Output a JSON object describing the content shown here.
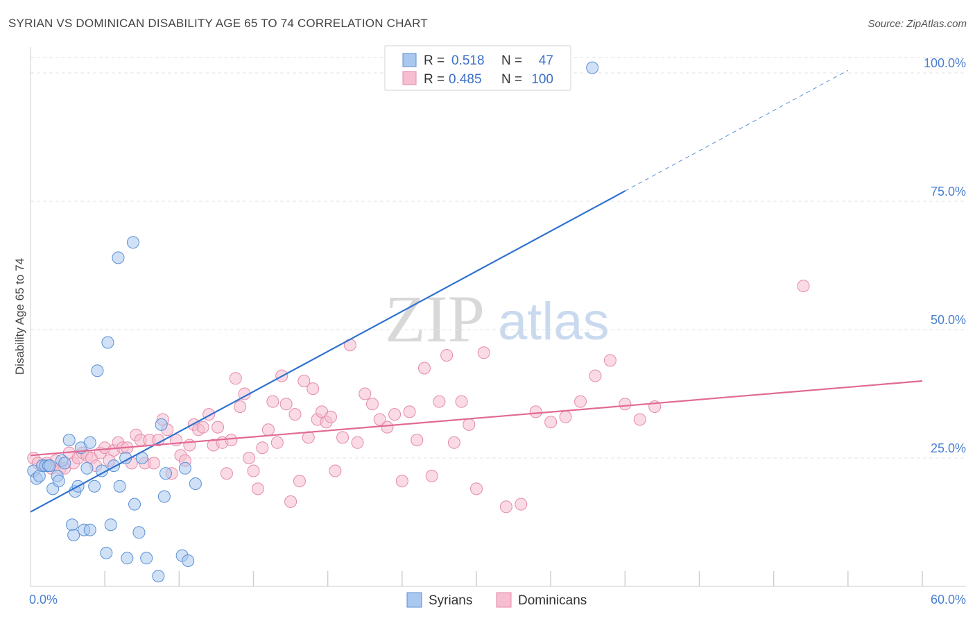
{
  "chart_data": {
    "type": "scatter",
    "title": "SYRIAN VS DOMINICAN DISABILITY AGE 65 TO 74 CORRELATION CHART",
    "source": "Source: ZipAtlas.com",
    "ylabel": "Disability Age 65 to 74",
    "xlim": [
      0,
      60
    ],
    "ylim": [
      0,
      105
    ],
    "x_tick_labels": [
      {
        "value": 0,
        "label": "0.0%"
      },
      {
        "value": 60,
        "label": "60.0%"
      }
    ],
    "y_tick_labels": [
      {
        "value": 25,
        "label": "25.0%"
      },
      {
        "value": 50,
        "label": "50.0%"
      },
      {
        "value": 75,
        "label": "75.0%"
      },
      {
        "value": 100,
        "label": "100.0%"
      }
    ],
    "watermark": {
      "zip": "ZIP",
      "atlas": "atlas"
    },
    "legend": {
      "r_label": "R =",
      "n_label": "N =",
      "entries": [
        {
          "name": "Syrians",
          "r": "0.518",
          "n": "47"
        },
        {
          "name": "Dominicans",
          "r": "0.485",
          "n": "100"
        }
      ]
    },
    "colors": {
      "syrians_fill": "#a9c8ef",
      "syrians_stroke": "#5a8fd6",
      "syrians_line": "#2f72d0",
      "dominicans_fill": "#f6bed0",
      "dominicans_stroke": "#e48aa8",
      "dominicans_line": "#e06a94",
      "tick_text": "#4a7fd0",
      "grid": "#e3e3e3"
    },
    "series": [
      {
        "name": "Syrians",
        "trend": {
          "x1": 0,
          "y1": 14.5,
          "x2": 40,
          "y2": 77,
          "dash_x2": 55,
          "dash_y2": 100.5
        },
        "points": [
          [
            0.2,
            22.5
          ],
          [
            0.4,
            21
          ],
          [
            0.6,
            21.5
          ],
          [
            0.8,
            23.5
          ],
          [
            1.0,
            23.5
          ],
          [
            1.2,
            23.5
          ],
          [
            1.5,
            19
          ],
          [
            1.8,
            21.5
          ],
          [
            1.9,
            20.5
          ],
          [
            2.1,
            24.5
          ],
          [
            2.3,
            24
          ],
          [
            2.6,
            28.5
          ],
          [
            2.8,
            12
          ],
          [
            2.9,
            10
          ],
          [
            3.0,
            18.5
          ],
          [
            3.2,
            19.5
          ],
          [
            3.4,
            27
          ],
          [
            3.6,
            11
          ],
          [
            3.8,
            23
          ],
          [
            4.0,
            11
          ],
          [
            4.0,
            28
          ],
          [
            4.3,
            19.5
          ],
          [
            4.5,
            42
          ],
          [
            4.8,
            22.5
          ],
          [
            5.1,
            6.5
          ],
          [
            5.2,
            47.5
          ],
          [
            5.4,
            12
          ],
          [
            5.6,
            23.5
          ],
          [
            5.9,
            64
          ],
          [
            6.0,
            19.5
          ],
          [
            6.4,
            25
          ],
          [
            6.5,
            5.5
          ],
          [
            6.9,
            67
          ],
          [
            7.0,
            16
          ],
          [
            7.3,
            10.5
          ],
          [
            7.5,
            25
          ],
          [
            7.8,
            5.5
          ],
          [
            8.6,
            2
          ],
          [
            9.0,
            17.5
          ],
          [
            9.1,
            22
          ],
          [
            8.8,
            31.5
          ],
          [
            10.2,
            6
          ],
          [
            10.4,
            23
          ],
          [
            10.6,
            5
          ],
          [
            11.1,
            20
          ],
          [
            37.8,
            101
          ],
          [
            1.3,
            23.5
          ]
        ]
      },
      {
        "name": "Dominicans",
        "trend": {
          "x1": 0,
          "y1": 25.5,
          "x2": 60,
          "y2": 40
        },
        "points": [
          [
            0.2,
            25
          ],
          [
            0.5,
            24
          ],
          [
            0.8,
            23.5
          ],
          [
            1.1,
            24
          ],
          [
            1.4,
            23
          ],
          [
            1.7,
            24.5
          ],
          [
            2.0,
            23
          ],
          [
            2.3,
            23
          ],
          [
            2.6,
            26
          ],
          [
            2.9,
            24
          ],
          [
            3.2,
            25
          ],
          [
            3.5,
            26
          ],
          [
            3.8,
            25.5
          ],
          [
            4.1,
            25
          ],
          [
            4.4,
            23.5
          ],
          [
            4.7,
            26
          ],
          [
            5.0,
            27
          ],
          [
            5.3,
            24.5
          ],
          [
            5.6,
            26.5
          ],
          [
            5.9,
            28
          ],
          [
            6.2,
            27
          ],
          [
            6.5,
            27
          ],
          [
            6.8,
            24
          ],
          [
            7.1,
            29.5
          ],
          [
            7.4,
            28.5
          ],
          [
            7.7,
            24
          ],
          [
            8.0,
            28.5
          ],
          [
            8.3,
            24
          ],
          [
            8.6,
            28.5
          ],
          [
            8.9,
            32.5
          ],
          [
            9.2,
            30.5
          ],
          [
            9.5,
            22
          ],
          [
            9.8,
            28.5
          ],
          [
            10.1,
            25.5
          ],
          [
            10.4,
            24.5
          ],
          [
            10.7,
            27.5
          ],
          [
            11.0,
            31.5
          ],
          [
            11.3,
            30.5
          ],
          [
            11.6,
            31
          ],
          [
            12.0,
            33.5
          ],
          [
            12.3,
            27.5
          ],
          [
            12.6,
            31
          ],
          [
            12.9,
            28
          ],
          [
            13.2,
            22
          ],
          [
            13.5,
            28.5
          ],
          [
            13.8,
            40.5
          ],
          [
            14.1,
            35
          ],
          [
            14.4,
            37.5
          ],
          [
            14.7,
            25
          ],
          [
            15.0,
            22.5
          ],
          [
            15.3,
            19
          ],
          [
            15.6,
            27
          ],
          [
            16.0,
            30.5
          ],
          [
            16.3,
            36
          ],
          [
            16.6,
            28
          ],
          [
            16.9,
            41
          ],
          [
            17.2,
            35.5
          ],
          [
            17.5,
            16.5
          ],
          [
            17.8,
            33.5
          ],
          [
            18.1,
            20.5
          ],
          [
            18.4,
            40
          ],
          [
            18.7,
            29
          ],
          [
            19.0,
            38.5
          ],
          [
            19.3,
            32.5
          ],
          [
            19.6,
            34
          ],
          [
            19.9,
            32
          ],
          [
            20.2,
            33
          ],
          [
            20.5,
            22.5
          ],
          [
            21.0,
            29
          ],
          [
            21.5,
            47
          ],
          [
            22.0,
            28
          ],
          [
            22.5,
            37.5
          ],
          [
            23.0,
            35.5
          ],
          [
            23.5,
            32.5
          ],
          [
            24.0,
            31
          ],
          [
            24.5,
            33.5
          ],
          [
            25.0,
            20.5
          ],
          [
            25.5,
            34
          ],
          [
            26.0,
            28.5
          ],
          [
            26.5,
            42.5
          ],
          [
            27.0,
            21.5
          ],
          [
            27.5,
            36
          ],
          [
            28.0,
            45
          ],
          [
            28.5,
            28
          ],
          [
            29.0,
            36
          ],
          [
            29.5,
            31.5
          ],
          [
            30.0,
            19
          ],
          [
            30.5,
            45.5
          ],
          [
            32.0,
            15.5
          ],
          [
            33.0,
            16
          ],
          [
            34.0,
            34
          ],
          [
            35.0,
            32
          ],
          [
            36.0,
            33
          ],
          [
            37.0,
            36
          ],
          [
            38.0,
            41
          ],
          [
            39.0,
            44
          ],
          [
            40.0,
            35.5
          ],
          [
            41.0,
            32.5
          ],
          [
            42.0,
            35
          ],
          [
            52.0,
            58.5
          ]
        ]
      }
    ]
  }
}
